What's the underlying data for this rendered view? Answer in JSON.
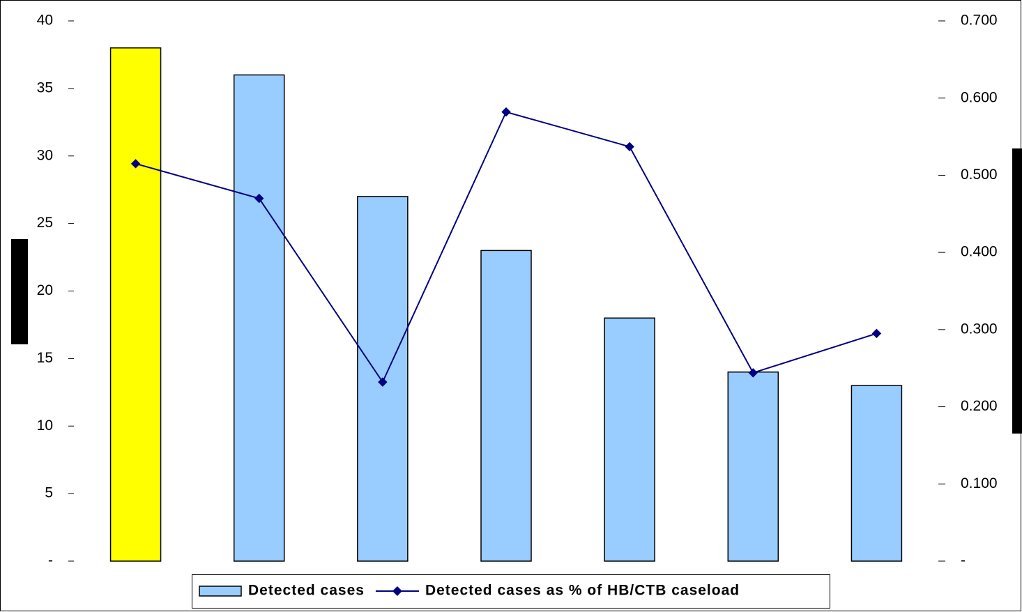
{
  "chart_data": {
    "type": "bar-line",
    "categories": [
      null,
      null,
      null,
      null,
      null,
      null,
      null
    ],
    "series": [
      {
        "name": "Detected cases",
        "type": "bar",
        "color": "#99ccff",
        "colors": [
          "#ffff00",
          "#99ccff",
          "#99ccff",
          "#99ccff",
          "#99ccff",
          "#99ccff",
          "#99ccff"
        ],
        "values": [
          38,
          36,
          27,
          23,
          18,
          14,
          13
        ]
      },
      {
        "name": "Detected cases as % of HB/CTB caseload",
        "type": "line",
        "axis": "y2",
        "color": "#000080",
        "values": [
          0.515,
          0.47,
          0.232,
          0.582,
          0.537,
          0.244,
          0.295
        ]
      }
    ],
    "ylim": [
      0,
      40
    ],
    "yticks": [
      {
        "value": 0,
        "label": "-"
      },
      5,
      10,
      15,
      20,
      25,
      30,
      35,
      40
    ],
    "y2lim": [
      0,
      0.7
    ],
    "y2ticks": [
      {
        "value": 0,
        "label": "-"
      },
      {
        "value": 0.1,
        "label": "0.100"
      },
      {
        "value": 0.2,
        "label": "0.200"
      },
      {
        "value": 0.3,
        "label": "0.300"
      },
      {
        "value": 0.4,
        "label": "0.400"
      },
      {
        "value": 0.5,
        "label": "0.500"
      },
      {
        "value": 0.6,
        "label": "0.600"
      },
      {
        "value": 0.7,
        "label": "0.700"
      }
    ],
    "legend": "bottom"
  }
}
